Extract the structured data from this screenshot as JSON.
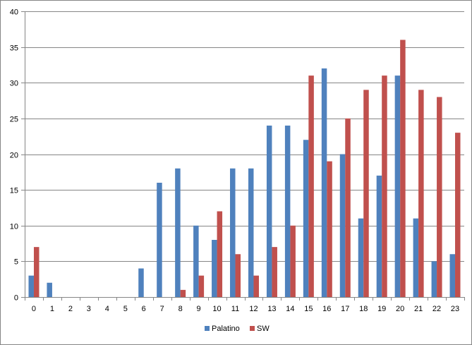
{
  "chart_data": {
    "type": "bar",
    "title": "",
    "xlabel": "",
    "ylabel": "",
    "categories": [
      "0",
      "1",
      "2",
      "3",
      "4",
      "5",
      "6",
      "7",
      "8",
      "9",
      "10",
      "11",
      "12",
      "13",
      "14",
      "15",
      "16",
      "17",
      "18",
      "19",
      "20",
      "21",
      "22",
      "23"
    ],
    "series": [
      {
        "name": "Palatino",
        "color": "#4f81bd",
        "values": [
          3,
          2,
          0,
          0,
          0,
          0,
          4,
          16,
          18,
          10,
          8,
          18,
          18,
          24,
          24,
          22,
          32,
          20,
          11,
          17,
          31,
          11,
          5,
          6
        ]
      },
      {
        "name": "SW",
        "color": "#c0504d",
        "values": [
          7,
          0,
          0,
          0,
          0,
          0,
          0,
          0,
          1,
          3,
          12,
          6,
          3,
          7,
          10,
          31,
          19,
          25,
          29,
          31,
          36,
          29,
          28,
          23
        ]
      }
    ],
    "ylim": [
      0,
      40
    ],
    "yticks": [
      0,
      5,
      10,
      15,
      20,
      25,
      30,
      35,
      40
    ],
    "grid": true,
    "legend_position": "bottom"
  }
}
